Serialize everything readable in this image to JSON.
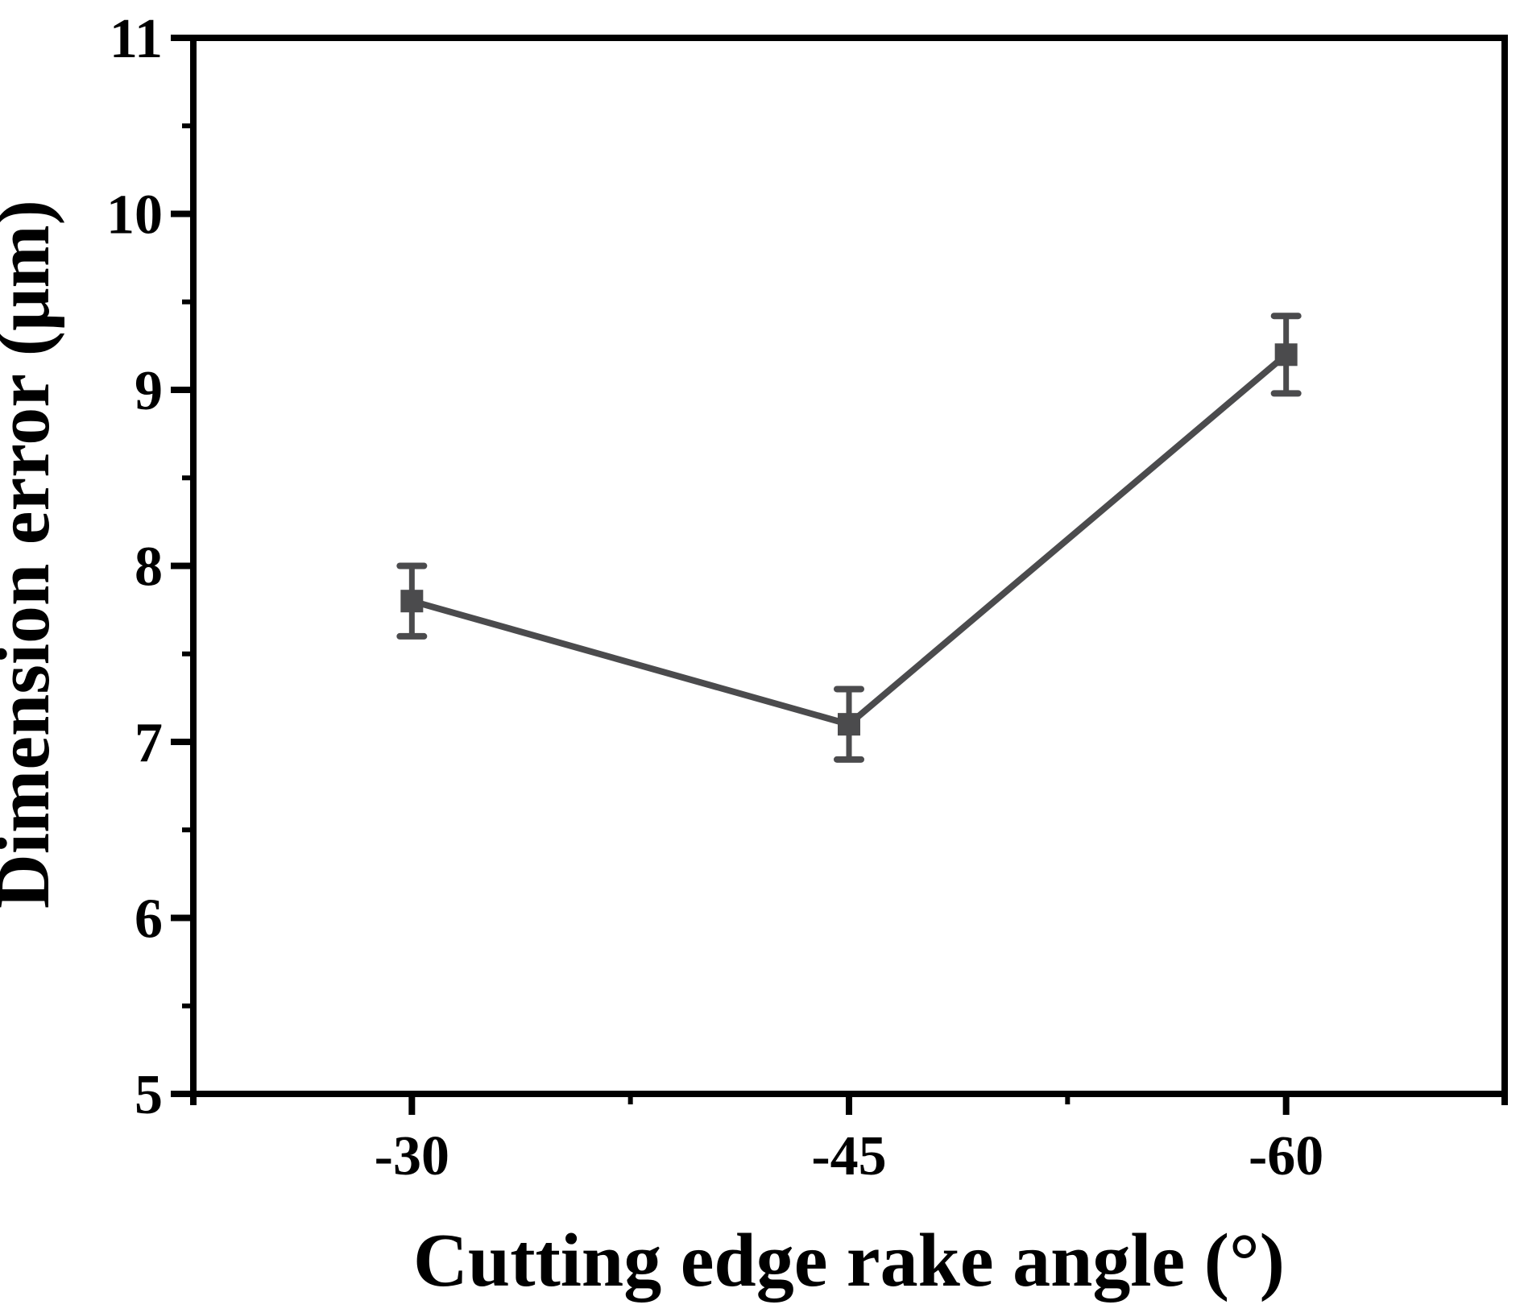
{
  "figure": {
    "background": "#ffffff",
    "axis_color": "#000000"
  },
  "chart_data": {
    "type": "line",
    "categories": [
      "-30",
      "-45",
      "-60"
    ],
    "series": [
      {
        "name": "Dimension error",
        "values": [
          7.8,
          7.1,
          9.2
        ],
        "errors": [
          0.2,
          0.2,
          0.22
        ],
        "color": "#4b4b4d",
        "marker": "square"
      }
    ],
    "title": "",
    "xlabel": "Cutting edge rake angle (°)",
    "ylabel": "Dimension error (μm)",
    "ylim": [
      5,
      11
    ],
    "y_major_step": 1,
    "y_minor_step": 0.5,
    "x_minor_between_categories": true,
    "grid": false,
    "legend": "none",
    "error_bars": true
  }
}
